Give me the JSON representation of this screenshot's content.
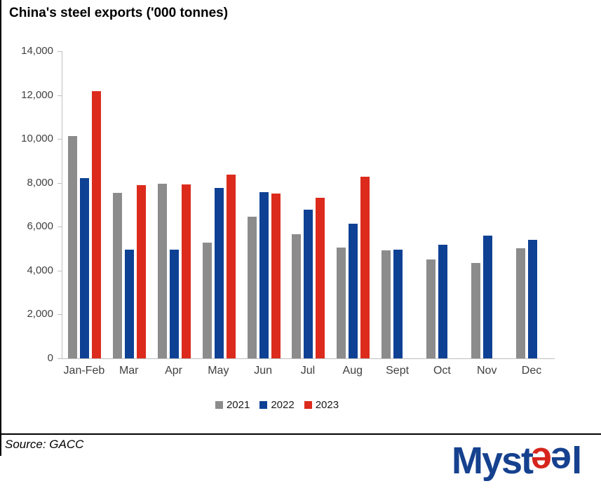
{
  "title": "China's steel exports ('000 tonnes)",
  "source": "Source: GACC",
  "logo": {
    "brand": "Mysteel",
    "part1": "Myst",
    "part2": "e",
    "part3": "e",
    "part4": "l",
    "blue": "#15418E",
    "red": "#D6251D"
  },
  "colors": {
    "axis": "#BFBFBF",
    "axis_text": "#404040",
    "legend_text": "#1a1a1a",
    "border": "#000000"
  },
  "chart_data": {
    "type": "bar",
    "title": "China's steel exports ('000 tonnes)",
    "categories": [
      "Jan-Feb",
      "Mar",
      "Apr",
      "May",
      "Jun",
      "Jul",
      "Aug",
      "Sept",
      "Oct",
      "Nov",
      "Dec"
    ],
    "series": [
      {
        "name": "2021",
        "color": "#8C8C8C",
        "values": [
          10140,
          7540,
          7970,
          5270,
          6460,
          5670,
          5050,
          4920,
          4500,
          4360,
          5020
        ]
      },
      {
        "name": "2022",
        "color": "#0E4194",
        "values": [
          8230,
          4950,
          4970,
          7760,
          7560,
          6770,
          6150,
          4970,
          5180,
          5580,
          5400
        ]
      },
      {
        "name": "2023",
        "color": "#DC2B1C",
        "values": [
          12190,
          7900,
          7940,
          8360,
          7510,
          7310,
          8280,
          null,
          null,
          null,
          null
        ]
      }
    ],
    "ylim": [
      0,
      14000
    ],
    "ytick_step": 2000,
    "ytick_labels": [
      "0",
      "2,000",
      "4,000",
      "6,000",
      "8,000",
      "10,000",
      "12,000",
      "14,000"
    ],
    "grid": false,
    "legend_position": "bottom",
    "xlabel": "",
    "ylabel": ""
  }
}
